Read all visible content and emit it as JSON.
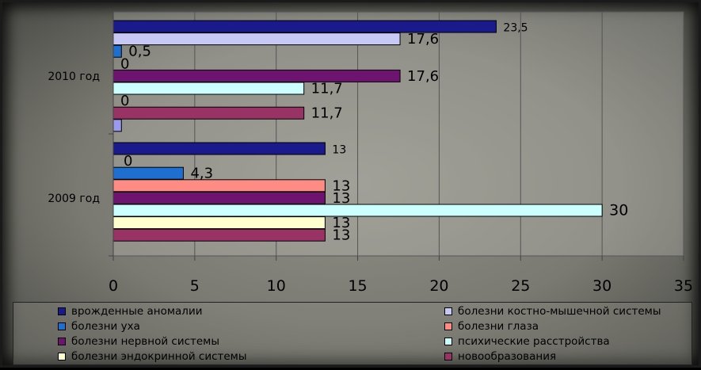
{
  "chart_data": {
    "type": "bar",
    "orientation": "horizontal",
    "categories": [
      "2010 год",
      "2009 год"
    ],
    "xlim": [
      0,
      35
    ],
    "xticks": [
      0,
      5,
      10,
      15,
      20,
      25,
      30,
      35
    ],
    "grid": "vertical",
    "legend": "bottom",
    "series": [
      {
        "name": "врожденные аномалии",
        "color": "#1a1a8c",
        "values": [
          23.5,
          13
        ],
        "labels": [
          "23,5",
          "13"
        ]
      },
      {
        "name": "болезни костно-мышечной системы",
        "color": "#c8c8f4",
        "values": [
          17.6,
          0
        ],
        "labels": [
          "17,6",
          ""
        ]
      },
      {
        "name": "болезни уха",
        "color": "#1f6fd0",
        "values": [
          0.5,
          4.3
        ],
        "labels": [
          "0,5",
          "4,3"
        ]
      },
      {
        "name": "болезни глаза",
        "color": "#ff8c84",
        "values": [
          0,
          13
        ],
        "labels": [
          "0",
          "13"
        ]
      },
      {
        "name": "болезни нервной системы",
        "color": "#6e1470",
        "values": [
          17.6,
          13
        ],
        "labels": [
          "17,6",
          "13"
        ]
      },
      {
        "name": "психические расстройства",
        "color": "#ccffff",
        "values": [
          11.7,
          30
        ],
        "labels": [
          "11,7",
          "30"
        ]
      },
      {
        "name": "болезни эндокринной системы",
        "color": "#ffffd0",
        "values": [
          0,
          13
        ],
        "labels": [
          "0",
          "13"
        ]
      },
      {
        "name": "новообразования",
        "color": "#993366",
        "values": [
          11.7,
          13
        ],
        "labels": [
          "11,7",
          "13"
        ]
      },
      {
        "name": "",
        "color": "#9a9aee",
        "values": [
          0.5,
          0
        ],
        "labels": [
          "",
          ""
        ]
      }
    ],
    "extra_labels": [
      {
        "category": 1,
        "slot": 1,
        "text": "0"
      }
    ]
  }
}
